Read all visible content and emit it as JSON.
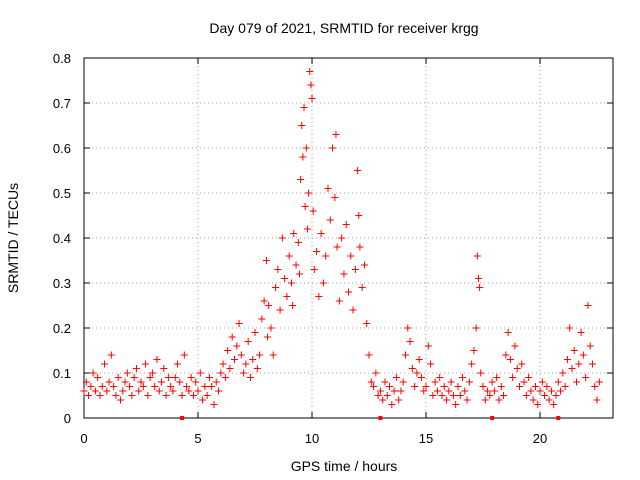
{
  "chart_data": {
    "type": "scatter",
    "title": "Day 079 of 2021, SRMTID for receiver krgg",
    "xlabel": "GPS time / hours",
    "ylabel": "SRMTID / TECUs",
    "xlim": [
      0,
      23.2
    ],
    "ylim": [
      0,
      0.8
    ],
    "xticks": [
      0,
      5,
      10,
      15,
      20
    ],
    "yticks": [
      0,
      0.1,
      0.2,
      0.3,
      0.4,
      0.5,
      0.6,
      0.7,
      0.8
    ],
    "xtick_labels": [
      "0",
      "5",
      "10",
      "15",
      "20"
    ],
    "ytick_labels": [
      "0",
      "0.1",
      "0.2",
      "0.3",
      "0.4",
      "0.5",
      "0.6",
      "0.7",
      "0.8"
    ],
    "grid": true,
    "marker": "plus",
    "color": "#ff0000",
    "series": [
      {
        "name": "SRMTID",
        "points": [
          [
            0.0,
            0.06
          ],
          [
            0.1,
            0.08
          ],
          [
            0.2,
            0.05
          ],
          [
            0.3,
            0.07
          ],
          [
            0.4,
            0.1
          ],
          [
            0.5,
            0.06
          ],
          [
            0.6,
            0.09
          ],
          [
            0.7,
            0.05
          ],
          [
            0.8,
            0.07
          ],
          [
            0.9,
            0.12
          ],
          [
            1.0,
            0.06
          ],
          [
            1.1,
            0.08
          ],
          [
            1.2,
            0.14
          ],
          [
            1.3,
            0.07
          ],
          [
            1.4,
            0.05
          ],
          [
            1.5,
            0.09
          ],
          [
            1.6,
            0.04
          ],
          [
            1.7,
            0.06
          ],
          [
            1.8,
            0.08
          ],
          [
            1.9,
            0.1
          ],
          [
            2.0,
            0.07
          ],
          [
            2.1,
            0.05
          ],
          [
            2.2,
            0.09
          ],
          [
            2.3,
            0.11
          ],
          [
            2.4,
            0.06
          ],
          [
            2.5,
            0.08
          ],
          [
            2.6,
            0.07
          ],
          [
            2.7,
            0.12
          ],
          [
            2.8,
            0.05
          ],
          [
            2.9,
            0.09
          ],
          [
            3.0,
            0.1
          ],
          [
            3.1,
            0.07
          ],
          [
            3.2,
            0.13
          ],
          [
            3.3,
            0.06
          ],
          [
            3.4,
            0.08
          ],
          [
            3.5,
            0.11
          ],
          [
            3.6,
            0.05
          ],
          [
            3.7,
            0.09
          ],
          [
            3.8,
            0.07
          ],
          [
            3.9,
            0.06
          ],
          [
            4.0,
            0.09
          ],
          [
            4.1,
            0.12
          ],
          [
            4.2,
            0.08
          ],
          [
            4.3,
            0.05
          ],
          [
            4.4,
            0.14
          ],
          [
            4.5,
            0.07
          ],
          [
            4.6,
            0.06
          ],
          [
            4.7,
            0.09
          ],
          [
            4.8,
            0.05
          ],
          [
            4.9,
            0.08
          ],
          [
            5.0,
            0.06
          ],
          [
            5.1,
            0.1
          ],
          [
            5.2,
            0.04
          ],
          [
            5.3,
            0.07
          ],
          [
            5.4,
            0.05
          ],
          [
            5.5,
            0.09
          ],
          [
            5.6,
            0.07
          ],
          [
            5.7,
            0.03
          ],
          [
            5.8,
            0.08
          ],
          [
            5.9,
            0.06
          ],
          [
            6.0,
            0.1
          ],
          [
            6.1,
            0.12
          ],
          [
            6.2,
            0.09
          ],
          [
            6.3,
            0.15
          ],
          [
            6.4,
            0.11
          ],
          [
            6.5,
            0.18
          ],
          [
            6.6,
            0.13
          ],
          [
            6.7,
            0.16
          ],
          [
            6.8,
            0.21
          ],
          [
            6.9,
            0.14
          ],
          [
            7.0,
            0.1
          ],
          [
            7.1,
            0.12
          ],
          [
            7.2,
            0.17
          ],
          [
            7.3,
            0.09
          ],
          [
            7.4,
            0.13
          ],
          [
            7.5,
            0.19
          ],
          [
            7.6,
            0.11
          ],
          [
            7.7,
            0.14
          ],
          [
            7.8,
            0.22
          ],
          [
            7.9,
            0.26
          ],
          [
            8.0,
            0.35
          ],
          [
            8.05,
            0.18
          ],
          [
            8.1,
            0.25
          ],
          [
            8.2,
            0.2
          ],
          [
            8.3,
            0.14
          ],
          [
            8.4,
            0.29
          ],
          [
            8.5,
            0.33
          ],
          [
            8.6,
            0.24
          ],
          [
            8.7,
            0.4
          ],
          [
            8.8,
            0.31
          ],
          [
            8.9,
            0.27
          ],
          [
            9.0,
            0.36
          ],
          [
            9.1,
            0.3
          ],
          [
            9.15,
            0.25
          ],
          [
            9.2,
            0.41
          ],
          [
            9.3,
            0.34
          ],
          [
            9.4,
            0.39
          ],
          [
            9.45,
            0.32
          ],
          [
            9.5,
            0.53
          ],
          [
            9.55,
            0.65
          ],
          [
            9.6,
            0.58
          ],
          [
            9.65,
            0.69
          ],
          [
            9.7,
            0.47
          ],
          [
            9.75,
            0.6
          ],
          [
            9.8,
            0.42
          ],
          [
            9.85,
            0.5
          ],
          [
            9.9,
            0.77
          ],
          [
            9.95,
            0.74
          ],
          [
            10.0,
            0.71
          ],
          [
            10.05,
            0.46
          ],
          [
            10.1,
            0.33
          ],
          [
            10.2,
            0.37
          ],
          [
            10.3,
            0.27
          ],
          [
            10.4,
            0.41
          ],
          [
            10.5,
            0.3
          ],
          [
            10.6,
            0.36
          ],
          [
            10.7,
            0.51
          ],
          [
            10.8,
            0.44
          ],
          [
            10.9,
            0.6
          ],
          [
            11.0,
            0.49
          ],
          [
            11.05,
            0.63
          ],
          [
            11.1,
            0.38
          ],
          [
            11.2,
            0.26
          ],
          [
            11.3,
            0.4
          ],
          [
            11.4,
            0.32
          ],
          [
            11.5,
            0.43
          ],
          [
            11.6,
            0.28
          ],
          [
            11.7,
            0.36
          ],
          [
            11.8,
            0.24
          ],
          [
            11.9,
            0.33
          ],
          [
            12.0,
            0.55
          ],
          [
            12.05,
            0.45
          ],
          [
            12.1,
            0.38
          ],
          [
            12.2,
            0.29
          ],
          [
            12.3,
            0.34
          ],
          [
            12.4,
            0.21
          ],
          [
            12.5,
            0.14
          ],
          [
            12.6,
            0.08
          ],
          [
            12.7,
            0.07
          ],
          [
            12.8,
            0.1
          ],
          [
            12.9,
            0.05
          ],
          [
            13.0,
            0.06
          ],
          [
            13.1,
            0.04
          ],
          [
            13.2,
            0.08
          ],
          [
            13.3,
            0.05
          ],
          [
            13.4,
            0.07
          ],
          [
            13.5,
            0.03
          ],
          [
            13.6,
            0.06
          ],
          [
            13.7,
            0.09
          ],
          [
            13.8,
            0.04
          ],
          [
            13.9,
            0.06
          ],
          [
            14.0,
            0.08
          ],
          [
            14.1,
            0.14
          ],
          [
            14.2,
            0.2
          ],
          [
            14.3,
            0.17
          ],
          [
            14.4,
            0.11
          ],
          [
            14.5,
            0.07
          ],
          [
            14.6,
            0.1
          ],
          [
            14.7,
            0.13
          ],
          [
            14.8,
            0.09
          ],
          [
            14.9,
            0.06
          ],
          [
            15.0,
            0.07
          ],
          [
            15.1,
            0.16
          ],
          [
            15.2,
            0.12
          ],
          [
            15.3,
            0.05
          ],
          [
            15.4,
            0.08
          ],
          [
            15.5,
            0.06
          ],
          [
            15.6,
            0.09
          ],
          [
            15.7,
            0.05
          ],
          [
            15.8,
            0.07
          ],
          [
            15.9,
            0.04
          ],
          [
            16.0,
            0.06
          ],
          [
            16.1,
            0.08
          ],
          [
            16.2,
            0.05
          ],
          [
            16.3,
            0.03
          ],
          [
            16.4,
            0.07
          ],
          [
            16.5,
            0.05
          ],
          [
            16.6,
            0.09
          ],
          [
            16.7,
            0.06
          ],
          [
            16.8,
            0.04
          ],
          [
            16.9,
            0.08
          ],
          [
            17.0,
            0.12
          ],
          [
            17.1,
            0.15
          ],
          [
            17.2,
            0.2
          ],
          [
            17.25,
            0.36
          ],
          [
            17.3,
            0.31
          ],
          [
            17.35,
            0.29
          ],
          [
            17.4,
            0.1
          ],
          [
            17.5,
            0.07
          ],
          [
            17.6,
            0.04
          ],
          [
            17.7,
            0.06
          ],
          [
            17.8,
            0.05
          ],
          [
            17.9,
            0.08
          ],
          [
            18.0,
            0.06
          ],
          [
            18.1,
            0.09
          ],
          [
            18.2,
            0.04
          ],
          [
            18.3,
            0.07
          ],
          [
            18.4,
            0.05
          ],
          [
            18.5,
            0.14
          ],
          [
            18.6,
            0.19
          ],
          [
            18.7,
            0.13
          ],
          [
            18.8,
            0.09
          ],
          [
            18.9,
            0.16
          ],
          [
            19.0,
            0.11
          ],
          [
            19.1,
            0.07
          ],
          [
            19.2,
            0.12
          ],
          [
            19.3,
            0.08
          ],
          [
            19.4,
            0.05
          ],
          [
            19.5,
            0.09
          ],
          [
            19.6,
            0.06
          ],
          [
            19.7,
            0.04
          ],
          [
            19.8,
            0.07
          ],
          [
            19.9,
            0.03
          ],
          [
            20.0,
            0.06
          ],
          [
            20.1,
            0.08
          ],
          [
            20.2,
            0.05
          ],
          [
            20.3,
            0.07
          ],
          [
            20.4,
            0.04
          ],
          [
            20.5,
            0.06
          ],
          [
            20.6,
            0.03
          ],
          [
            20.7,
            0.05
          ],
          [
            20.8,
            0.08
          ],
          [
            20.9,
            0.06
          ],
          [
            21.0,
            0.1
          ],
          [
            21.1,
            0.07
          ],
          [
            21.2,
            0.13
          ],
          [
            21.3,
            0.2
          ],
          [
            21.4,
            0.11
          ],
          [
            21.5,
            0.15
          ],
          [
            21.6,
            0.08
          ],
          [
            21.7,
            0.12
          ],
          [
            21.8,
            0.19
          ],
          [
            21.9,
            0.14
          ],
          [
            22.0,
            0.09
          ],
          [
            22.1,
            0.25
          ],
          [
            22.2,
            0.16
          ],
          [
            22.3,
            0.12
          ],
          [
            22.4,
            0.07
          ],
          [
            22.5,
            0.04
          ],
          [
            22.6,
            0.08
          ]
        ]
      }
    ],
    "gap_markers_x": [
      4.3,
      13.0,
      17.9,
      20.8
    ]
  }
}
